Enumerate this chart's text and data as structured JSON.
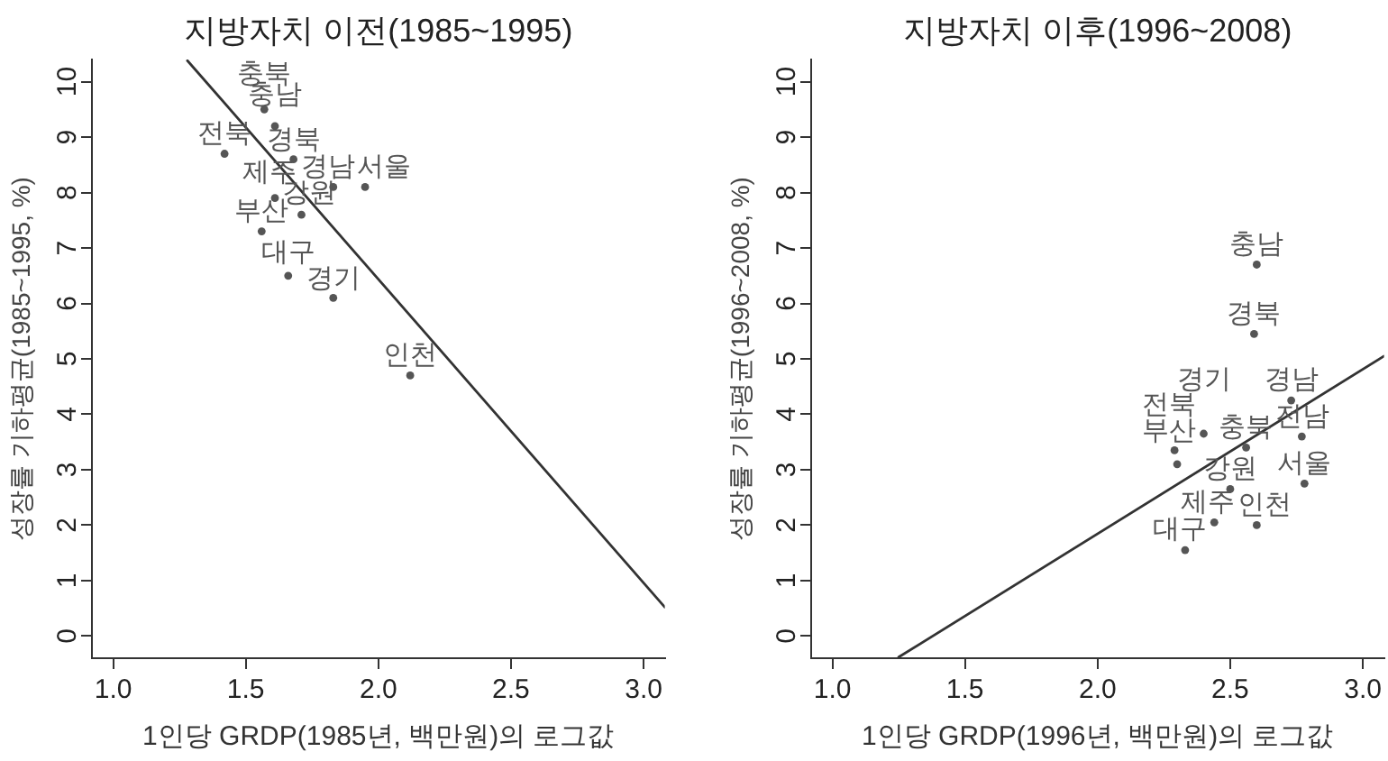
{
  "chart_data": [
    {
      "type": "scatter",
      "title": "지방자치 이전(1985~1995)",
      "xlabel": "1인당 GRDP(1985년, 백만원)의 로그값",
      "ylabel": "성장률 기하평균(1985~1995, %)",
      "xlim": [
        0.92,
        3.08
      ],
      "ylim": [
        -0.4,
        10.4
      ],
      "xticks": [
        {
          "value": 1,
          "label": "1.0"
        },
        {
          "value": 1.5,
          "label": "1.5"
        },
        {
          "value": 2,
          "label": "2.0"
        },
        {
          "value": 2.5,
          "label": "2.5"
        },
        {
          "value": 3,
          "label": "3.0"
        }
      ],
      "yticks": [
        0,
        1,
        2,
        3,
        4,
        5,
        6,
        7,
        8,
        9,
        10
      ],
      "grid": false,
      "series": [
        {
          "type": "scatter",
          "color": "#555555",
          "marker": "circle",
          "x": [
            1.57,
            1.61,
            1.42,
            1.68,
            1.83,
            1.95,
            1.61,
            1.71,
            1.56,
            1.66,
            1.83,
            2.12
          ],
          "values": [
            9.5,
            9.2,
            8.7,
            8.6,
            8.1,
            8.1,
            7.9,
            7.6,
            7.3,
            6.5,
            6.1,
            4.7
          ],
          "value_labels": [
            "충북",
            "충남",
            "전북",
            "경북",
            "경남",
            "서울",
            "제주",
            "강원",
            "부산",
            "대구",
            "경기",
            "인천"
          ]
        },
        {
          "type": "line",
          "color": "#333333",
          "x": [
            1.28,
            3.08
          ],
          "values": [
            10.38,
            0.52
          ]
        }
      ]
    },
    {
      "type": "scatter",
      "title": "지방자치 이후(1996~2008)",
      "xlabel": "1인당 GRDP(1996년, 백만원)의 로그값",
      "ylabel": "성장률 기하평균(1996~2008, %)",
      "xlim": [
        0.92,
        3.08
      ],
      "ylim": [
        -0.4,
        10.4
      ],
      "xticks": [
        {
          "value": 1,
          "label": "1.0"
        },
        {
          "value": 1.5,
          "label": "1.5"
        },
        {
          "value": 2,
          "label": "2.0"
        },
        {
          "value": 2.5,
          "label": "2.5"
        },
        {
          "value": 3,
          "label": "3.0"
        }
      ],
      "yticks": [
        0,
        1,
        2,
        3,
        4,
        5,
        6,
        7,
        8,
        9,
        10
      ],
      "grid": false,
      "series": [
        {
          "type": "scatter",
          "color": "#555555",
          "marker": "circle",
          "x": [
            2.6,
            2.59,
            2.73,
            2.77,
            2.78,
            2.5,
            2.44,
            2.6,
            2.33,
            2.4,
            2.56,
            2.29,
            2.3
          ],
          "values": [
            6.7,
            5.45,
            4.25,
            3.6,
            2.75,
            2.65,
            2.05,
            2.0,
            1.55,
            3.65,
            3.4,
            3.35,
            3.1
          ],
          "value_labels": [
            "충남",
            "경북",
            "경남",
            "전남",
            "서울",
            "강원",
            "제주",
            "인천",
            "대구",
            "경기",
            "충북",
            "전북",
            "부산"
          ]
        },
        {
          "type": "line",
          "color": "#333333",
          "x": [
            1.25,
            3.08
          ],
          "values": [
            -0.38,
            5.05
          ]
        }
      ]
    }
  ]
}
